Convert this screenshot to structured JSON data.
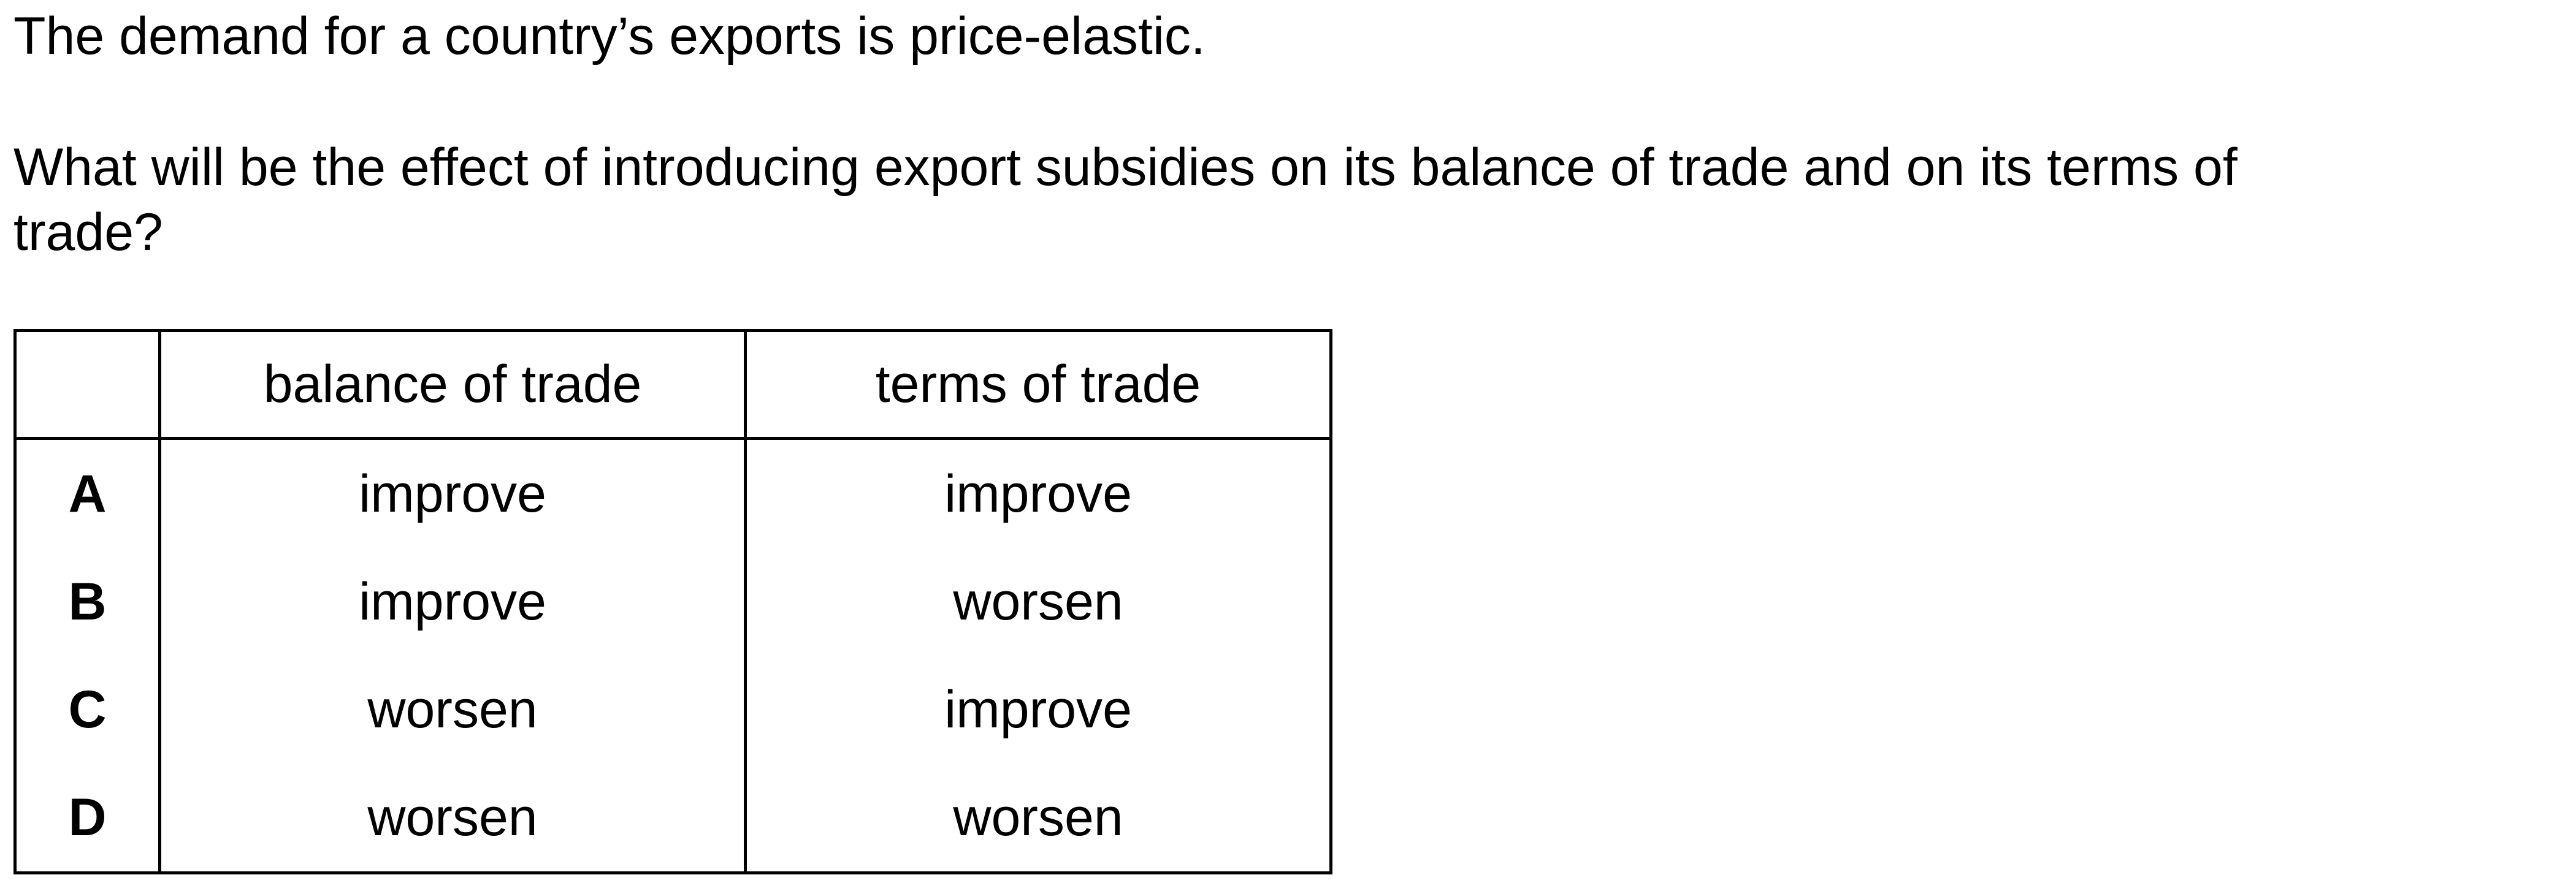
{
  "question": {
    "stem_line1": "The demand for a country’s exports is price-elastic.",
    "stem_line2": "What will be the effect of introducing export subsidies on its balance of trade and on its terms of",
    "stem_line3": "trade?"
  },
  "table": {
    "headers": [
      "",
      "balance of trade",
      "terms of trade"
    ],
    "rows": [
      {
        "key": "A",
        "balance": "improve",
        "terms": "improve"
      },
      {
        "key": "B",
        "balance": "improve",
        "terms": "worsen"
      },
      {
        "key": "C",
        "balance": "worsen",
        "terms": "improve"
      },
      {
        "key": "D",
        "balance": "worsen",
        "terms": "worsen"
      }
    ]
  }
}
